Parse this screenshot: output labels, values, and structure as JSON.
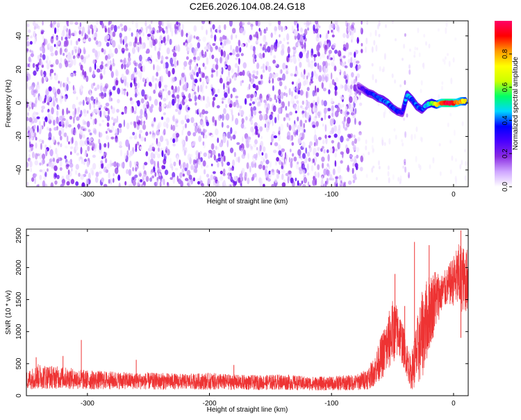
{
  "page": {
    "title": "C2E6.2026.104.08.24.G18"
  },
  "chart_data": [
    {
      "type": "heatmap",
      "xlabel": "Height of straight line (km)",
      "ylabel": "Frequency (Hz)",
      "xlim": [
        -350,
        12
      ],
      "ylim": [
        -50,
        49
      ],
      "xticks": [
        -300,
        -200,
        -100,
        0
      ],
      "yticks": [
        -40,
        -20,
        0,
        20,
        40
      ],
      "colorbar": {
        "label": "Normalized spectral amplitude",
        "range": [
          0,
          1
        ],
        "ticks": [
          0.0,
          0.2,
          0.4,
          0.6,
          0.8
        ],
        "tick_labels": [
          "0.0",
          "0.2",
          "0.4",
          "0.6",
          "0.8"
        ],
        "colormap": [
          "#ffffff",
          "#cfa6ff",
          "#8a2be2",
          "#4b00ff",
          "#0000ff",
          "#00d7ff",
          "#00ff66",
          "#ccff00",
          "#ffff00",
          "#ff9900",
          "#ff0000",
          "#ff0066"
        ]
      },
      "background_noise": {
        "x_range": [
          -350,
          -75
        ],
        "amplitude_range": [
          0.02,
          0.25
        ]
      },
      "gap_columns": [
        {
          "x_range": [
            -75,
            -40
          ],
          "amplitude_range": [
            0,
            0.05
          ]
        },
        {
          "x_range": [
            -40,
            -36
          ],
          "amplitude_range": [
            0.02,
            0.15
          ]
        },
        {
          "x_range": [
            -36,
            12
          ],
          "amplitude_range": [
            0,
            0.03
          ]
        }
      ],
      "signal_track": {
        "x": [
          -78,
          -74,
          -70,
          -66,
          -62,
          -58,
          -54,
          -50,
          -46,
          -42,
          -38,
          -34,
          -30,
          -26,
          -22,
          -18,
          -14,
          -10,
          -6,
          -2,
          2,
          6,
          10
        ],
        "y": [
          10,
          8,
          6,
          5,
          3,
          2,
          0,
          -3,
          -5,
          -6,
          5,
          2,
          -2,
          -4,
          -1,
          0,
          -1,
          0,
          0,
          0,
          0,
          1,
          1
        ],
        "amplitude": [
          0.2,
          0.25,
          0.3,
          0.35,
          0.35,
          0.4,
          0.4,
          0.35,
          0.35,
          0.3,
          0.45,
          0.4,
          0.4,
          0.35,
          0.45,
          0.55,
          0.7,
          0.85,
          0.95,
          0.95,
          0.85,
          0.8,
          0.7
        ]
      }
    },
    {
      "type": "line",
      "xlabel": "Height of straight line (km)",
      "ylabel": "SNR (10 * v/v)",
      "xlim": [
        -350,
        12
      ],
      "ylim": [
        0,
        2600
      ],
      "xticks": [
        -300,
        -200,
        -100,
        0
      ],
      "yticks": [
        0,
        500,
        1000,
        1500,
        2000,
        2500
      ],
      "series": [
        {
          "color": "#ee3333",
          "envelope_x": [
            -350,
            -340,
            -320,
            -300,
            -280,
            -260,
            -240,
            -220,
            -200,
            -180,
            -160,
            -140,
            -120,
            -100,
            -90,
            -80,
            -75,
            -70,
            -65,
            -60,
            -55,
            -50,
            -45,
            -40,
            -35,
            -30,
            -25,
            -20,
            -15,
            -10,
            -5,
            0,
            5,
            10
          ],
          "envelope_low": [
            100,
            100,
            110,
            90,
            100,
            100,
            90,
            100,
            90,
            90,
            90,
            90,
            80,
            80,
            80,
            80,
            90,
            100,
            150,
            250,
            300,
            500,
            600,
            400,
            100,
            100,
            300,
            700,
            1000,
            1300,
            1400,
            1400,
            1300,
            1300
          ],
          "envelope_high": [
            380,
            500,
            450,
            400,
            380,
            360,
            360,
            340,
            360,
            330,
            320,
            340,
            300,
            300,
            320,
            330,
            380,
            450,
            600,
            900,
            1200,
            1500,
            1400,
            1000,
            600,
            1200,
            1700,
            1900,
            2000,
            1900,
            2000,
            2200,
            2400,
            2300
          ],
          "spikes": [
            {
              "x": -342,
              "y": 600
            },
            {
              "x": -320,
              "y": 620
            },
            {
              "x": -305,
              "y": 870
            },
            {
              "x": -260,
              "y": 560
            },
            {
              "x": -180,
              "y": 480
            },
            {
              "x": -48,
              "y": 1900
            },
            {
              "x": -40,
              "y": 1400
            },
            {
              "x": -32,
              "y": 2400
            },
            {
              "x": -20,
              "y": 2350
            },
            {
              "x": 6,
              "y": 2580
            }
          ]
        }
      ]
    }
  ]
}
